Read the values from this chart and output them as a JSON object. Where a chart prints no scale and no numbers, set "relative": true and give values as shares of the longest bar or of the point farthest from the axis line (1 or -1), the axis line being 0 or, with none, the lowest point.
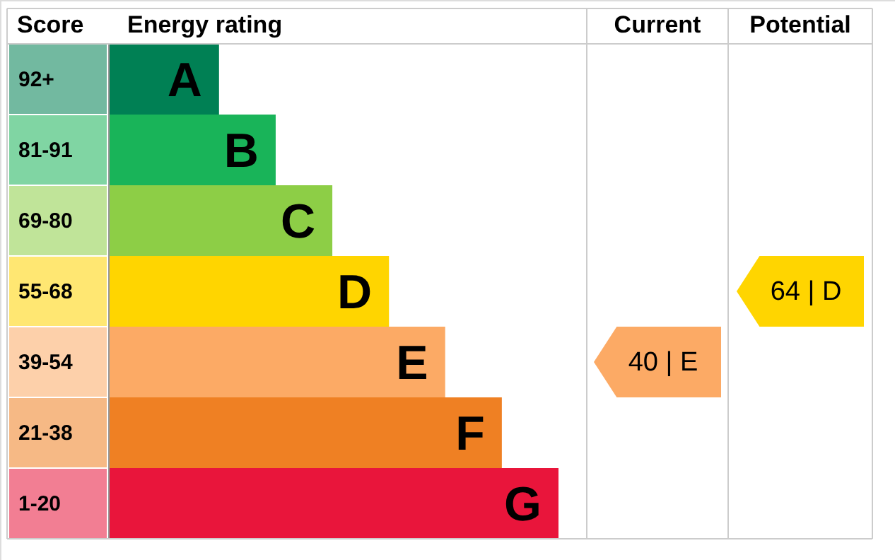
{
  "chart_data": {
    "type": "bar",
    "orientation": "horizontal",
    "relative": true,
    "xlabel": "Energy rating",
    "ylabel": "Score",
    "categories": [
      "92+",
      "81-91",
      "69-80",
      "55-68",
      "39-54",
      "21-38",
      "1-20"
    ],
    "values": [
      0.245,
      0.371,
      0.497,
      0.623,
      0.748,
      0.874,
      1
    ],
    "colors": [
      "#008054",
      "#19b459",
      "#8dce46",
      "#ffd500",
      "#fcaa65",
      "#ef8023",
      "#e9153b"
    ],
    "annotations": [
      "Current",
      "Potential",
      "40 | E",
      "64 | D",
      {
        "text": "A",
        "x": 0.245,
        "y": "92+"
      },
      {
        "text": "B",
        "x": 0.371,
        "y": "81-91"
      },
      {
        "text": "C",
        "x": 0.497,
        "y": "69-80"
      },
      {
        "text": "D",
        "x": 0.623,
        "y": "55-68"
      },
      {
        "text": "E",
        "x": 0.748,
        "y": "39-54"
      },
      {
        "text": "F",
        "x": 0.874,
        "y": "21-38"
      },
      {
        "text": "G",
        "x": 1,
        "y": "1-20"
      }
    ]
  }
}
